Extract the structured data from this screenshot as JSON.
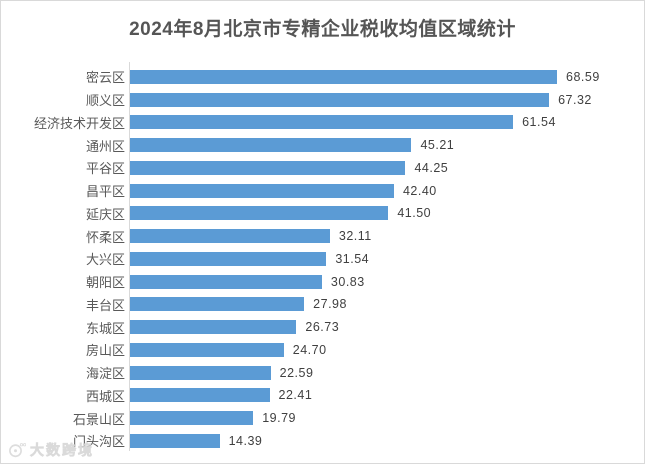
{
  "title": "2024年8月北京市专精企业税收均值区域统计",
  "watermark": {
    "logo": "daishu-circle-logo",
    "text": "大数跨境"
  },
  "colors": {
    "bar": "#5b9bd5",
    "title_text": "#555555",
    "category_text": "#595959",
    "value_text": "#404040",
    "axis_line": "#d9d9d9",
    "frame_border": "#d9d9d9",
    "watermark": "#dcdcdc"
  },
  "chart_data": {
    "type": "bar",
    "orientation": "horizontal",
    "title": "2024年8月北京市专精企业税收均值区域统计",
    "xlabel": "",
    "ylabel": "",
    "xlim": [
      0,
      68.59
    ],
    "grid": false,
    "legend": false,
    "data_labels": true,
    "categories": [
      "密云区",
      "顺义区",
      "经济技术开发区",
      "通州区",
      "平谷区",
      "昌平区",
      "延庆区",
      "怀柔区",
      "大兴区",
      "朝阳区",
      "丰台区",
      "东城区",
      "房山区",
      "海淀区",
      "西城区",
      "石景山区",
      "门头沟区"
    ],
    "values": [
      68.59,
      67.32,
      61.54,
      45.21,
      44.25,
      42.4,
      41.5,
      32.11,
      31.54,
      30.83,
      27.98,
      26.73,
      24.7,
      22.59,
      22.41,
      19.79,
      14.39
    ],
    "value_labels": [
      "68.59",
      "67.32",
      "61.54",
      "45.21",
      "44.25",
      "42.40",
      "41.50",
      "32.11",
      "31.54",
      "30.83",
      "27.98",
      "26.73",
      "24.70",
      "22.59",
      "22.41",
      "19.79",
      "14.39"
    ]
  }
}
